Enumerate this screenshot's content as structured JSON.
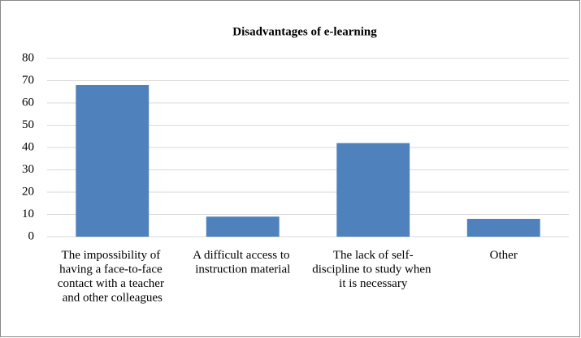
{
  "chart_data": {
    "type": "bar",
    "title": "Disadvantages of e-learning",
    "categories": [
      "The impossibility of having a face-to-face contact with a teacher and other colleagues",
      "A difficult access to instruction material",
      "The lack of self-discipline to study when it is necessary",
      "Other"
    ],
    "values": [
      68,
      9,
      42,
      8
    ],
    "color": "#4f81bd",
    "ylim": [
      0,
      80
    ],
    "yticks": [
      0,
      10,
      20,
      30,
      40,
      50,
      60,
      70,
      80
    ],
    "grid": true
  }
}
